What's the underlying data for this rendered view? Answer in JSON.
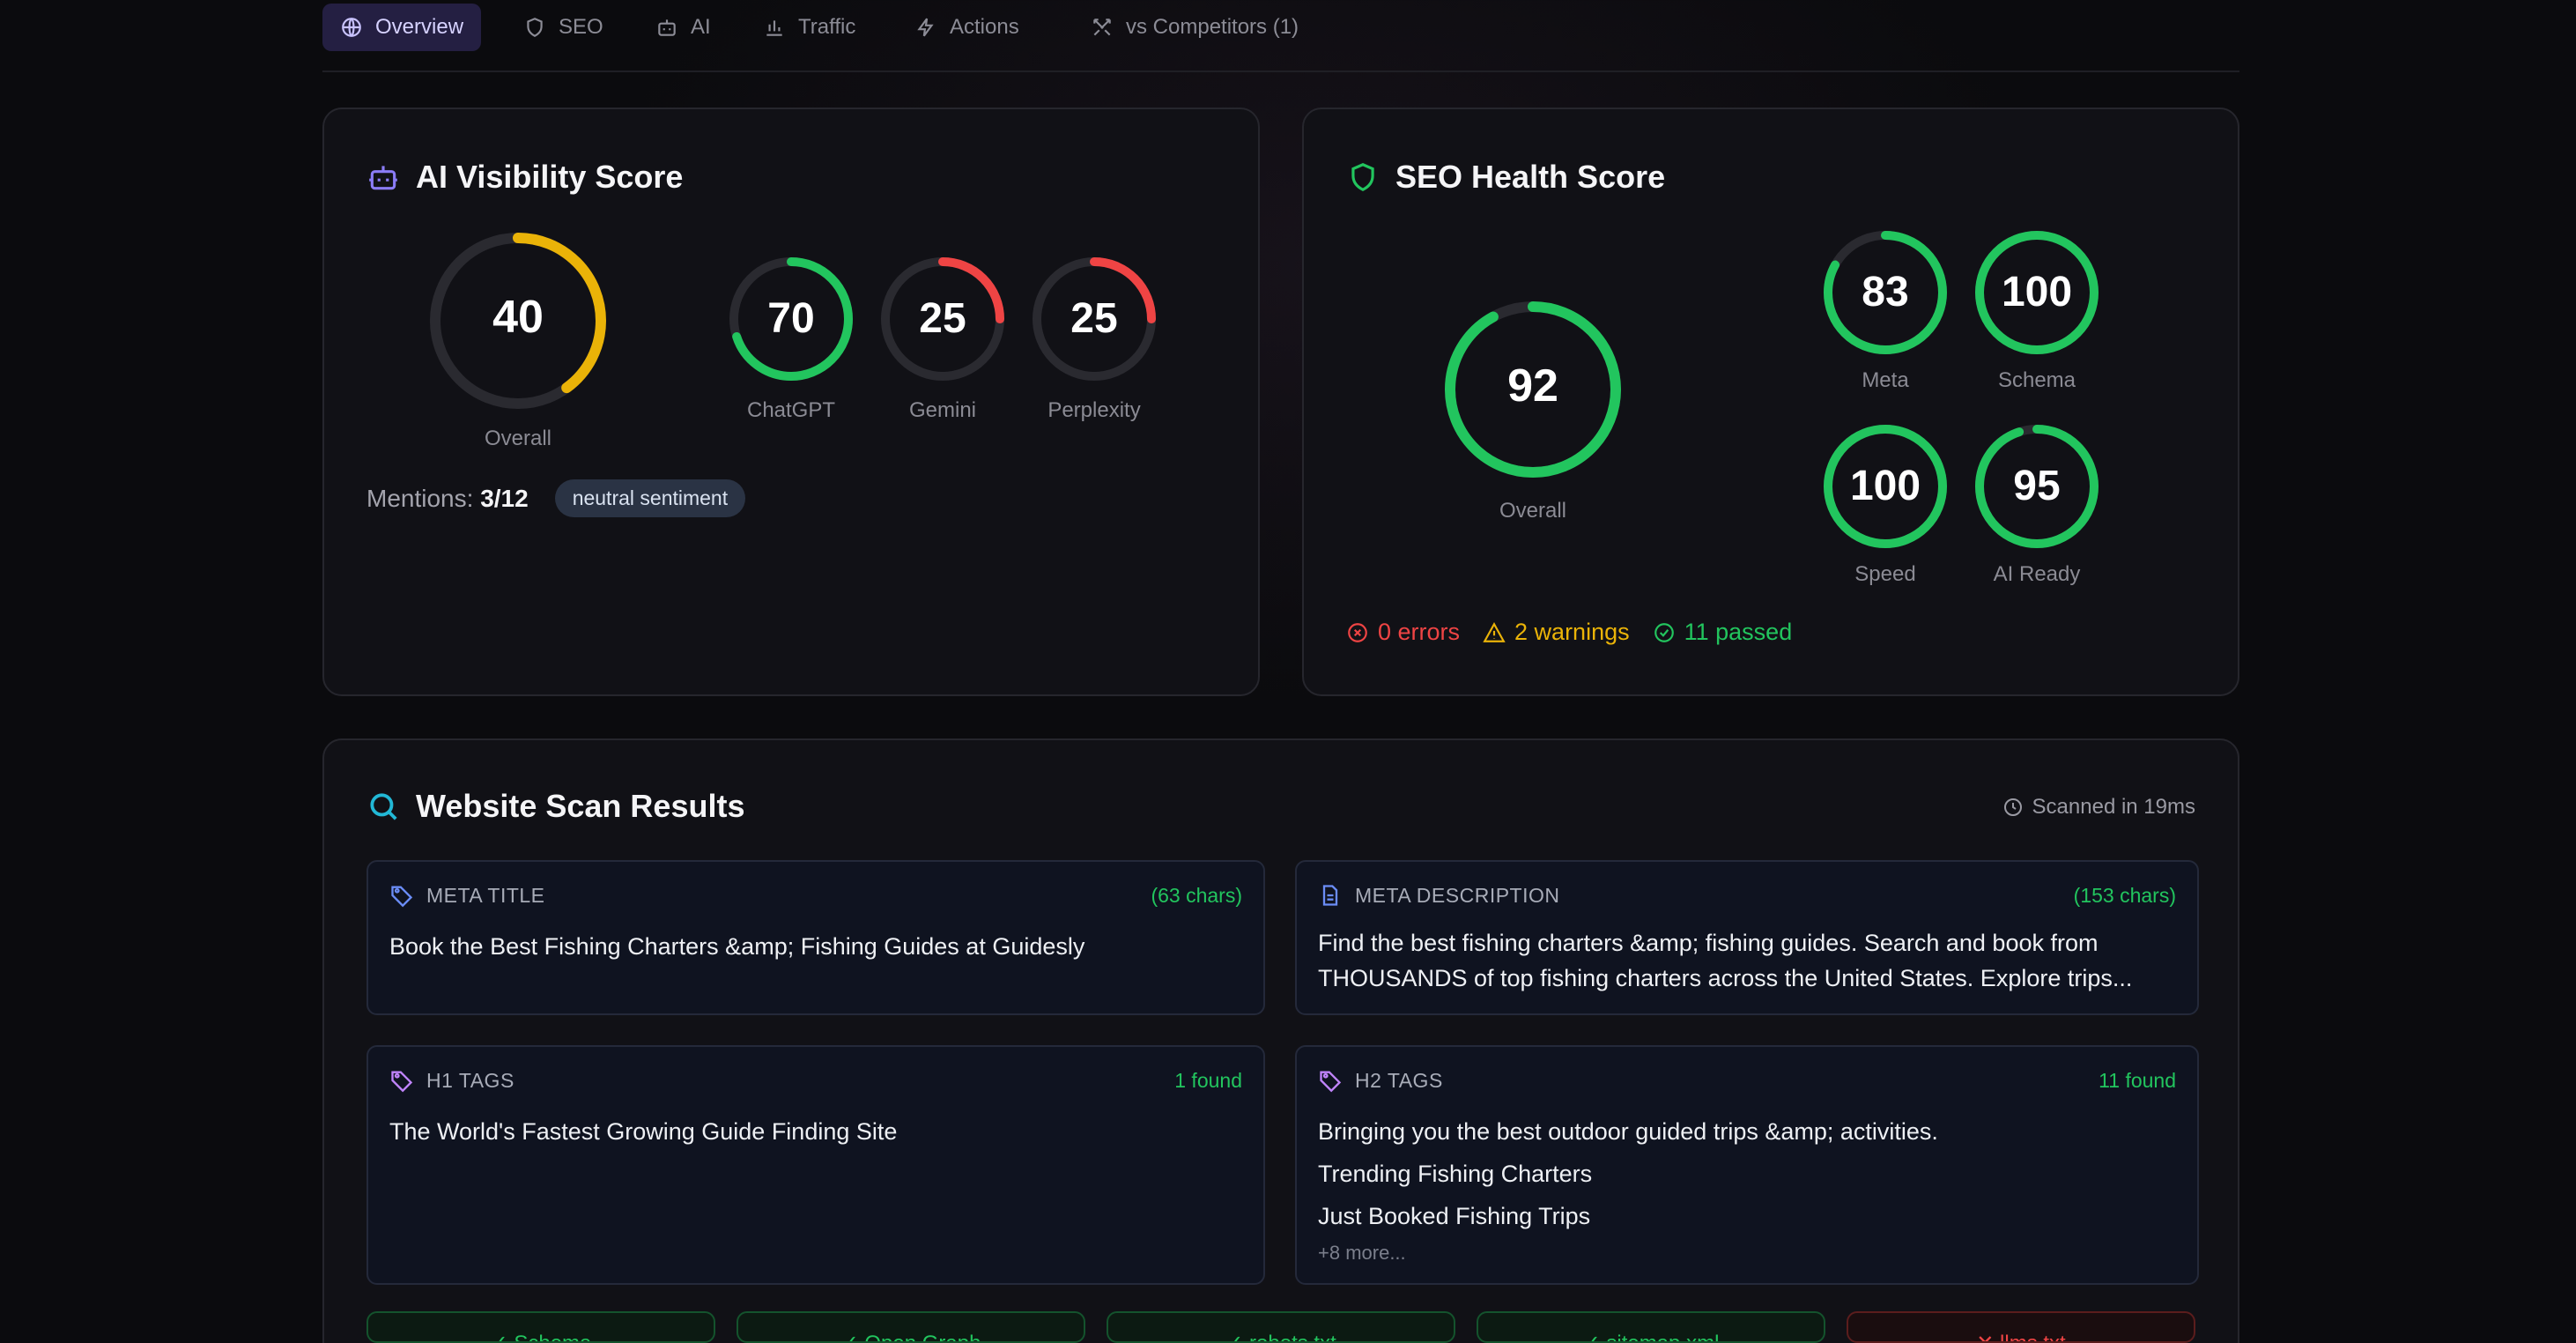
{
  "tabs": [
    {
      "label": "Overview",
      "icon": "globe-icon",
      "active": true
    },
    {
      "label": "SEO",
      "icon": "shield-icon"
    },
    {
      "label": "AI",
      "icon": "bot-icon"
    },
    {
      "label": "Traffic",
      "icon": "bar-chart-icon"
    },
    {
      "label": "Actions",
      "icon": "lightning-icon"
    },
    {
      "label": "vs Competitors (1)",
      "icon": "swords-icon"
    }
  ],
  "ai_visibility": {
    "title": "AI Visibility Score",
    "overall": {
      "value": "40",
      "label": "Overall",
      "fraction": 0.4,
      "color": "#eab308"
    },
    "engines": [
      {
        "value": "70",
        "label": "ChatGPT",
        "fraction": 0.7,
        "color": "#22c55e"
      },
      {
        "value": "25",
        "label": "Gemini",
        "fraction": 0.25,
        "color": "#ef4444"
      },
      {
        "value": "25",
        "label": "Perplexity",
        "fraction": 0.25,
        "color": "#ef4444"
      }
    ],
    "mentions_label": "Mentions:",
    "mentions_value": "3/12",
    "sentiment": "neutral sentiment"
  },
  "seo_health": {
    "title": "SEO Health Score",
    "overall": {
      "value": "92",
      "label": "Overall",
      "fraction": 0.92,
      "color": "#22c55e"
    },
    "metrics": [
      {
        "value": "83",
        "label": "Meta",
        "fraction": 0.83,
        "color": "#22c55e"
      },
      {
        "value": "100",
        "label": "Schema",
        "fraction": 1.0,
        "color": "#22c55e"
      },
      {
        "value": "100",
        "label": "Speed",
        "fraction": 1.0,
        "color": "#22c55e"
      },
      {
        "value": "95",
        "label": "AI Ready",
        "fraction": 0.95,
        "color": "#22c55e"
      }
    ],
    "errors": "0 errors",
    "warnings": "2 warnings",
    "passed": "11 passed"
  },
  "scan": {
    "title": "Website Scan Results",
    "time": "Scanned in 19ms",
    "meta_title": {
      "label": "META TITLE",
      "meta": "(63 chars)",
      "text": "Book the Best Fishing Charters &amp; Fishing Guides at Guidesly"
    },
    "meta_description": {
      "label": "META DESCRIPTION",
      "meta": "(153 chars)",
      "line1": "Find the best fishing charters &amp; fishing guides. Search and book from",
      "line2": "THOUSANDS of top fishing charters across the United States. Explore trips..."
    },
    "h1": {
      "label": "H1 TAGS",
      "meta": "1 found",
      "items": [
        "The World's Fastest Growing Guide Finding Site"
      ]
    },
    "h2": {
      "label": "H2 TAGS",
      "meta": "11 found",
      "items": [
        "Bringing you the best outdoor guided trips &amp; activities.",
        "Trending Fishing Charters",
        "Just Booked Fishing Trips"
      ],
      "more": "+8 more..."
    },
    "checks": [
      {
        "label": "✓ Schema",
        "ok": true
      },
      {
        "label": "✓ Open Graph",
        "ok": true
      },
      {
        "label": "✓ robots.txt",
        "ok": true
      },
      {
        "label": "✓ sitemap.xml",
        "ok": true
      },
      {
        "label": "✕ llms.txt",
        "ok": false
      }
    ]
  },
  "colors": {
    "accent": "#8b7cf6",
    "good": "#22c55e",
    "warn": "#eab308",
    "bad": "#ef4444",
    "info": "#22b8d6"
  }
}
